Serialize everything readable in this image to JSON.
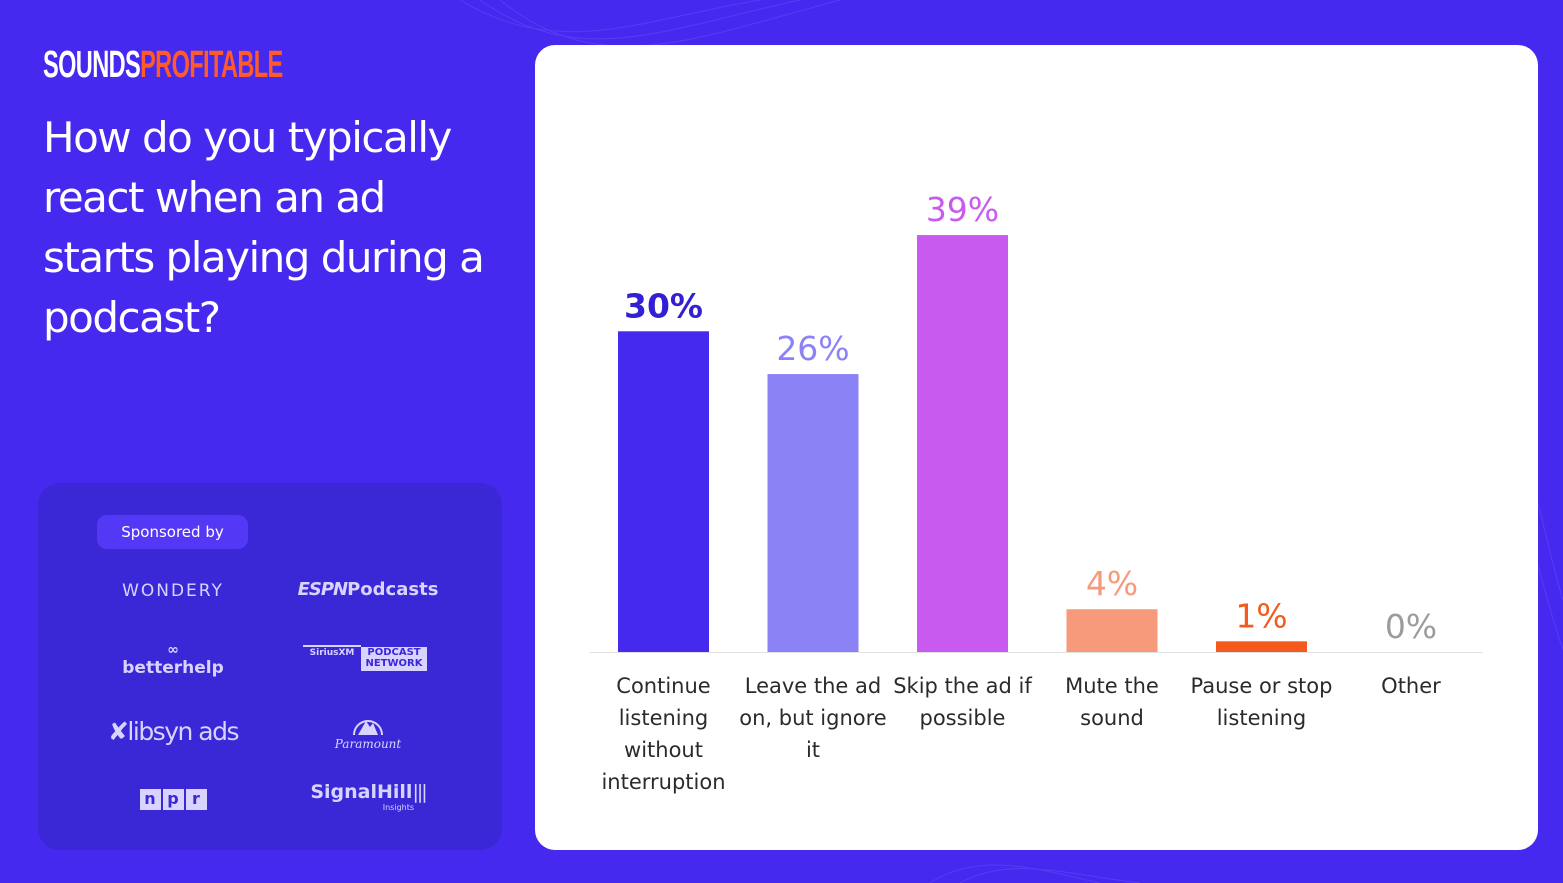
{
  "brand": {
    "part1": "SOUNDS",
    "part2": "PROFITABLE"
  },
  "question": "How do you typically react when an ad starts playing during a podcast?",
  "sponsors": {
    "label": "Sponsored by",
    "wondery": "WONDERY",
    "espn_mark": "ESPN",
    "espn_word": "Podcasts",
    "betterhelp": "betterhelp",
    "sirius_a": "SiriusXM",
    "sirius_b": "PODCAST",
    "sirius_c": "NETWORK",
    "libsyn": "libsyn ads",
    "paramount": "Paramount",
    "npr": [
      "n",
      "p",
      "r"
    ],
    "signal": "SignalHill",
    "signal_sub": "Insights"
  },
  "colors": {
    "background": "#4529ee",
    "accent_orange": "#ff5a2a"
  },
  "chart_data": {
    "type": "bar",
    "title": "How do you typically react when an ad starts playing during a podcast?",
    "ylabel": "",
    "xlabel": "",
    "ylim": [
      0,
      45
    ],
    "categories": [
      [
        "Continue",
        "listening",
        "without",
        "interruption"
      ],
      [
        "Leave the ad",
        "on, but ignore",
        "it"
      ],
      [
        "Skip the ad if",
        "possible"
      ],
      [
        "Mute the",
        "sound"
      ],
      [
        "Pause or stop",
        "listening"
      ],
      [
        "Other"
      ]
    ],
    "values": [
      30,
      26,
      39,
      4,
      1,
      0
    ],
    "value_labels": [
      "30%",
      "26%",
      "39%",
      "4%",
      "1%",
      "0%"
    ],
    "bar_colors": [
      "#4529ee",
      "#8b82f6",
      "#c85af0",
      "#f79a7c",
      "#f45a1e",
      "#d9d9d9"
    ],
    "label_colors": [
      "#3320d4",
      "#8b82f6",
      "#c85af0",
      "#f79a7c",
      "#f45a1e",
      "#9c9c9c"
    ]
  }
}
